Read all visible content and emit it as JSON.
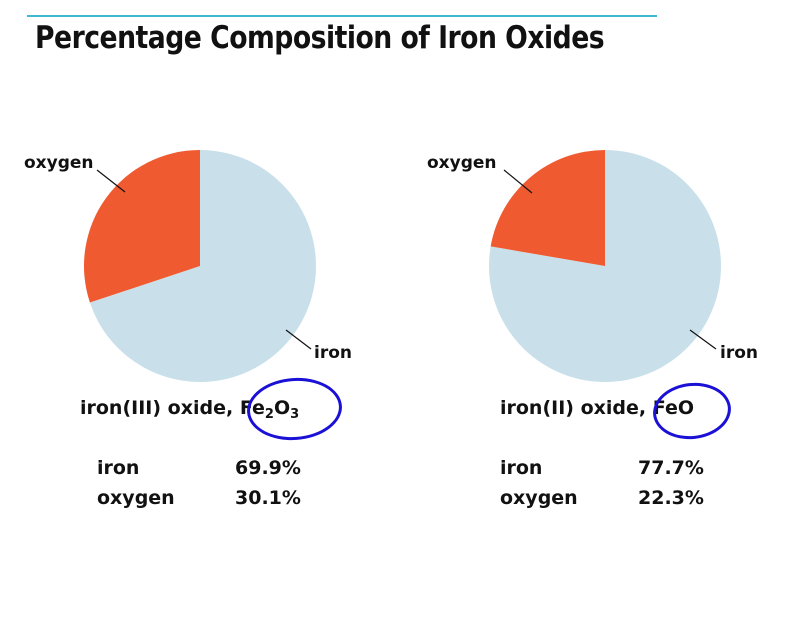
{
  "title": "Percentage Composition of Iron Oxides",
  "colors": {
    "iron": "#c9e0ea",
    "oxygen": "#f05a30",
    "rule": "#3fb7cf",
    "ink": "#1a10d6"
  },
  "chart_data": [
    {
      "type": "pie",
      "slice_labels": [
        "iron",
        "oxygen"
      ],
      "values": [
        69.9,
        30.1
      ],
      "compound_name": "iron(III) oxide,",
      "formula": {
        "el1": "Fe",
        "sub1": "2",
        "el2": "O",
        "sub2": "3"
      },
      "table": [
        {
          "element": "iron",
          "percent": "69.9%"
        },
        {
          "element": "oxygen",
          "percent": "30.1%"
        }
      ]
    },
    {
      "type": "pie",
      "slice_labels": [
        "iron",
        "oxygen"
      ],
      "values": [
        77.7,
        22.3
      ],
      "compound_name": "iron(II) oxide,",
      "formula": {
        "text": "FeO"
      },
      "table": [
        {
          "element": "iron",
          "percent": "77.7%"
        },
        {
          "element": "oxygen",
          "percent": "22.3%"
        }
      ]
    }
  ]
}
